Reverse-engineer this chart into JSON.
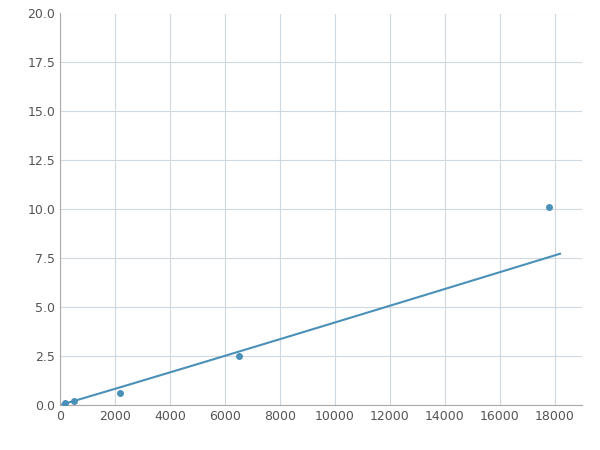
{
  "x_points": [
    200,
    500,
    2200,
    6500,
    17800
  ],
  "y_points": [
    0.1,
    0.2,
    0.6,
    2.5,
    10.1
  ],
  "line_color": "#4a90b8",
  "marker_color": "#4a90b8",
  "marker_size": 5,
  "line_width": 1.5,
  "xlim": [
    0,
    19000
  ],
  "ylim": [
    0,
    20
  ],
  "xticks": [
    0,
    2000,
    4000,
    6000,
    8000,
    10000,
    12000,
    14000,
    16000,
    18000
  ],
  "yticks": [
    0.0,
    2.5,
    5.0,
    7.5,
    10.0,
    12.5,
    15.0,
    17.5,
    20.0
  ],
  "grid_color": "#d0d8e0",
  "background_color": "#ffffff",
  "fig_width": 6.0,
  "fig_height": 4.5,
  "dpi": 100
}
